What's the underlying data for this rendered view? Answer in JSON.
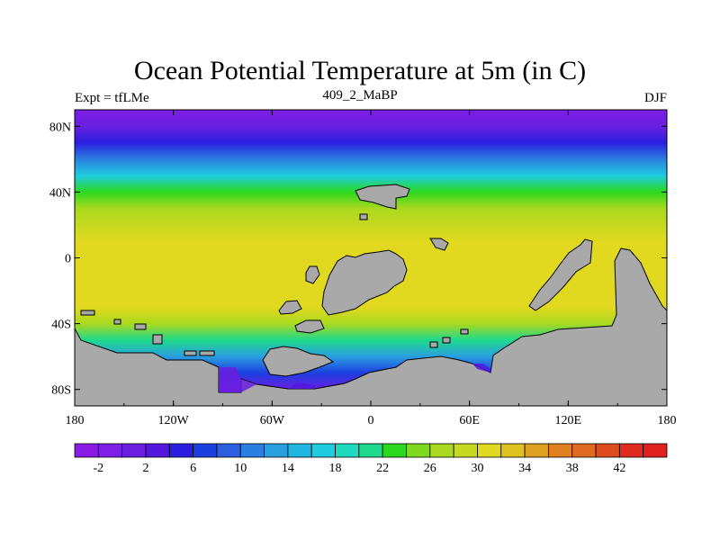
{
  "header": {
    "title": "Ocean Potential Temperature at 5m (in C)",
    "left": "Expt = tfLMe",
    "center": "409_2_MaBP",
    "right": "DJF"
  },
  "chart_data": {
    "type": "heatmap",
    "title": "Ocean Potential Temperature at 5m (in C)",
    "x_ticks": [
      "180",
      "120W",
      "60W",
      "0",
      "60E",
      "120E",
      "180"
    ],
    "y_ticks": [
      "80N",
      "40N",
      "0",
      "40S",
      "80S"
    ],
    "xlim": [
      -180,
      180
    ],
    "ylim": [
      -90,
      90
    ],
    "land_color": "#a9a9a9",
    "colorbar": {
      "labels": [
        "-2",
        "2",
        "6",
        "10",
        "14",
        "18",
        "22",
        "26",
        "30",
        "34",
        "38",
        "42"
      ],
      "colors": [
        "#8a1be6",
        "#7d1fe6",
        "#6a1fe0",
        "#5317e0",
        "#2a1fe0",
        "#1c3fe0",
        "#2a5fe0",
        "#2a7fe0",
        "#2a9fe0",
        "#1fb6e0",
        "#1fcce0",
        "#1fd9bf",
        "#1fd98c",
        "#2ad91f",
        "#7fd91f",
        "#aad91f",
        "#c6d91f",
        "#e0d91f",
        "#e0c21f",
        "#e0a01f",
        "#e0801f",
        "#e06a1f",
        "#e04a1f",
        "#e02a1f",
        "#e01f1f"
      ]
    },
    "zonal_sst_profile": [
      {
        "lat": 90,
        "temp": -2
      },
      {
        "lat": 80,
        "temp": 0
      },
      {
        "lat": 70,
        "temp": 4
      },
      {
        "lat": 60,
        "temp": 10
      },
      {
        "lat": 50,
        "temp": 17
      },
      {
        "lat": 40,
        "temp": 23
      },
      {
        "lat": 30,
        "temp": 27
      },
      {
        "lat": 20,
        "temp": 29
      },
      {
        "lat": 10,
        "temp": 30
      },
      {
        "lat": 0,
        "temp": 30
      },
      {
        "lat": -10,
        "temp": 31
      },
      {
        "lat": -20,
        "temp": 31
      },
      {
        "lat": -30,
        "temp": 30
      },
      {
        "lat": -40,
        "temp": 27
      },
      {
        "lat": -50,
        "temp": 21
      },
      {
        "lat": -60,
        "temp": 13
      },
      {
        "lat": -70,
        "temp": 6
      },
      {
        "lat": -80,
        "temp": 1
      },
      {
        "lat": -90,
        "temp": -1
      }
    ]
  }
}
